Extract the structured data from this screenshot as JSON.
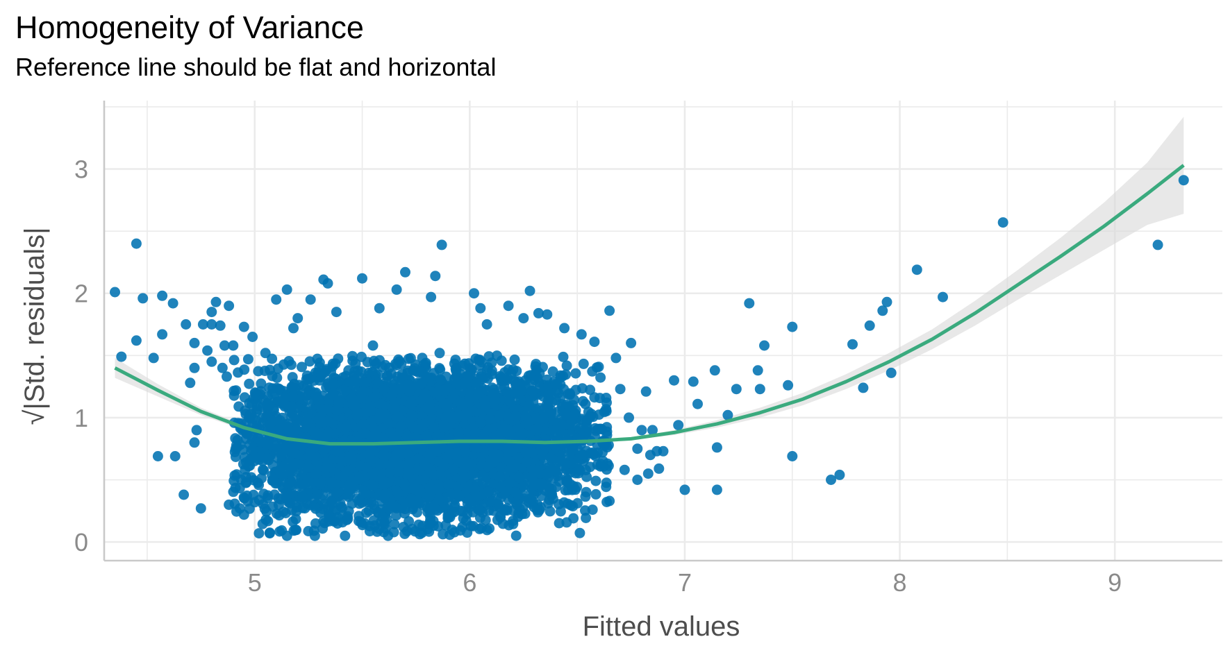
{
  "chart_data": {
    "type": "scatter",
    "title": "Homogeneity of Variance",
    "subtitle": "Reference line should be flat and horizontal",
    "xlabel": "Fitted values",
    "ylabel": "√|Std. residuals|",
    "xlim": [
      4.3,
      9.5
    ],
    "ylim": [
      -0.15,
      3.55
    ],
    "x_ticks": [
      5,
      6,
      7,
      8,
      9
    ],
    "y_ticks": [
      0,
      1,
      2,
      3
    ],
    "x_tick_labels": [
      "5",
      "6",
      "7",
      "8",
      "9"
    ],
    "y_tick_labels": [
      "0",
      "1",
      "2",
      "3"
    ],
    "grid": true,
    "colors": {
      "points": "#0072B2",
      "smooth": "#3AAA7E",
      "ribbon": "#d9d9d9",
      "grid": "#ebebeb",
      "axis": "#c9c9c9"
    },
    "dense_cloud": {
      "x_range": [
        4.9,
        6.65
      ],
      "y_range": [
        0.05,
        1.5
      ],
      "center_x": 5.75,
      "center_y": 0.8
    },
    "series": [
      {
        "type": "scatter",
        "points": [
          [
            4.35,
            2.01
          ],
          [
            4.38,
            1.49
          ],
          [
            4.45,
            2.4
          ],
          [
            4.45,
            1.62
          ],
          [
            4.48,
            1.96
          ],
          [
            4.53,
            1.48
          ],
          [
            4.55,
            0.69
          ],
          [
            4.57,
            1.98
          ],
          [
            4.57,
            1.67
          ],
          [
            4.62,
            1.92
          ],
          [
            4.63,
            0.69
          ],
          [
            4.67,
            0.38
          ],
          [
            4.68,
            1.75
          ],
          [
            4.7,
            1.28
          ],
          [
            4.72,
            1.6
          ],
          [
            4.72,
            1.4
          ],
          [
            4.72,
            0.8
          ],
          [
            4.73,
            0.9
          ],
          [
            4.75,
            0.27
          ],
          [
            4.76,
            1.75
          ],
          [
            4.78,
            1.54
          ],
          [
            4.8,
            1.85
          ],
          [
            4.8,
            1.45
          ],
          [
            4.8,
            1.75
          ],
          [
            4.82,
            1.93
          ],
          [
            4.84,
            1.74
          ],
          [
            4.85,
            1.4
          ],
          [
            4.86,
            1.58
          ],
          [
            4.87,
            1.33
          ],
          [
            4.88,
            0.3
          ],
          [
            4.88,
            1.9
          ],
          [
            4.9,
            1.58
          ],
          [
            4.95,
            1.73
          ],
          [
            4.95,
            0.22
          ],
          [
            4.97,
            1.47
          ],
          [
            4.99,
            1.65
          ],
          [
            5.0,
            0.32
          ],
          [
            5.05,
            1.52
          ],
          [
            5.02,
            0.07
          ],
          [
            5.07,
            0.07
          ],
          [
            5.1,
            1.95
          ],
          [
            5.15,
            2.03
          ],
          [
            5.15,
            0.05
          ],
          [
            5.18,
            1.72
          ],
          [
            5.2,
            1.8
          ],
          [
            5.26,
            1.95
          ],
          [
            5.28,
            0.05
          ],
          [
            5.32,
            2.11
          ],
          [
            5.34,
            2.08
          ],
          [
            5.38,
            1.85
          ],
          [
            5.42,
            0.05
          ],
          [
            5.5,
            2.12
          ],
          [
            5.55,
            1.58
          ],
          [
            5.58,
            1.88
          ],
          [
            5.62,
            0.05
          ],
          [
            5.66,
            2.03
          ],
          [
            5.7,
            2.17
          ],
          [
            5.82,
            1.97
          ],
          [
            5.84,
            2.14
          ],
          [
            5.87,
            2.39
          ],
          [
            6.02,
            2.0
          ],
          [
            6.05,
            1.88
          ],
          [
            6.08,
            1.75
          ],
          [
            6.18,
            1.9
          ],
          [
            6.25,
            1.8
          ],
          [
            6.28,
            2.02
          ],
          [
            6.32,
            1.84
          ],
          [
            6.36,
            1.83
          ],
          [
            6.44,
            1.72
          ],
          [
            6.52,
            1.67
          ],
          [
            6.58,
            1.61
          ],
          [
            6.65,
            1.86
          ],
          [
            6.62,
            0.65
          ],
          [
            6.65,
            0.33
          ],
          [
            6.68,
            1.48
          ],
          [
            6.7,
            1.23
          ],
          [
            6.72,
            0.58
          ],
          [
            6.74,
            1.0
          ],
          [
            6.75,
            1.6
          ],
          [
            6.78,
            0.5
          ],
          [
            6.78,
            0.75
          ],
          [
            6.8,
            0.9
          ],
          [
            6.82,
            1.21
          ],
          [
            6.83,
            0.55
          ],
          [
            6.84,
            0.7
          ],
          [
            6.85,
            0.9
          ],
          [
            6.87,
            0.73
          ],
          [
            6.88,
            0.59
          ],
          [
            6.9,
            0.73
          ],
          [
            6.95,
            1.3
          ],
          [
            6.97,
            0.94
          ],
          [
            7.0,
            0.42
          ],
          [
            7.04,
            1.29
          ],
          [
            7.06,
            1.11
          ],
          [
            7.14,
            1.38
          ],
          [
            7.15,
            0.76
          ],
          [
            7.15,
            0.42
          ],
          [
            7.2,
            1.02
          ],
          [
            7.24,
            1.23
          ],
          [
            7.3,
            1.92
          ],
          [
            7.34,
            1.38
          ],
          [
            7.35,
            1.23
          ],
          [
            7.37,
            1.58
          ],
          [
            7.48,
            1.26
          ],
          [
            7.5,
            1.73
          ],
          [
            7.5,
            0.69
          ],
          [
            7.68,
            0.5
          ],
          [
            7.72,
            0.54
          ],
          [
            7.78,
            1.59
          ],
          [
            7.83,
            1.24
          ],
          [
            7.86,
            1.74
          ],
          [
            7.92,
            1.86
          ],
          [
            7.94,
            1.93
          ],
          [
            7.96,
            1.36
          ],
          [
            8.08,
            2.19
          ],
          [
            8.2,
            1.97
          ],
          [
            8.48,
            2.57
          ],
          [
            9.2,
            2.39
          ],
          [
            9.32,
            2.91
          ],
          [
            5.86,
            1.52
          ]
        ]
      },
      {
        "type": "smooth",
        "name": "loess",
        "x": [
          4.35,
          4.55,
          4.75,
          4.95,
          5.15,
          5.35,
          5.55,
          5.75,
          5.95,
          6.15,
          6.35,
          6.55,
          6.75,
          6.95,
          7.15,
          7.35,
          7.55,
          7.75,
          7.95,
          8.15,
          8.35,
          8.55,
          8.75,
          8.95,
          9.15,
          9.32
        ],
        "y": [
          1.4,
          1.22,
          1.05,
          0.92,
          0.83,
          0.79,
          0.79,
          0.8,
          0.81,
          0.81,
          0.8,
          0.81,
          0.83,
          0.88,
          0.95,
          1.04,
          1.15,
          1.29,
          1.45,
          1.63,
          1.84,
          2.07,
          2.3,
          2.54,
          2.8,
          3.03
        ],
        "se_lower": [
          1.32,
          1.17,
          1.02,
          0.9,
          0.82,
          0.78,
          0.78,
          0.79,
          0.8,
          0.8,
          0.79,
          0.8,
          0.82,
          0.86,
          0.92,
          1.0,
          1.1,
          1.23,
          1.38,
          1.55,
          1.74,
          1.95,
          2.15,
          2.35,
          2.55,
          2.64
        ],
        "se_upper": [
          1.48,
          1.27,
          1.08,
          0.94,
          0.84,
          0.8,
          0.8,
          0.81,
          0.82,
          0.82,
          0.81,
          0.82,
          0.84,
          0.9,
          0.98,
          1.08,
          1.2,
          1.35,
          1.52,
          1.71,
          1.94,
          2.19,
          2.45,
          2.73,
          3.05,
          3.42
        ]
      }
    ]
  }
}
